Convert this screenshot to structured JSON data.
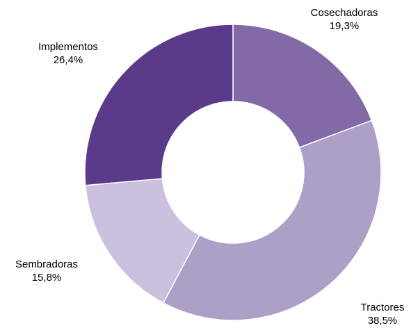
{
  "chart_data": {
    "type": "pie",
    "donut": true,
    "legend": "none",
    "slices": [
      {
        "name": "Cosechadoras",
        "value": 19.3,
        "label": "19,3%",
        "color": "#826AA6"
      },
      {
        "name": "Tractores",
        "value": 38.5,
        "label": "38,5%",
        "color": "#ACA0C7"
      },
      {
        "name": "Sembradoras",
        "value": 15.8,
        "label": "15,8%",
        "color": "#CBC1DE"
      },
      {
        "name": "Implementos",
        "value": 26.4,
        "label": "26,4%",
        "color": "#5B3A8A"
      }
    ]
  }
}
